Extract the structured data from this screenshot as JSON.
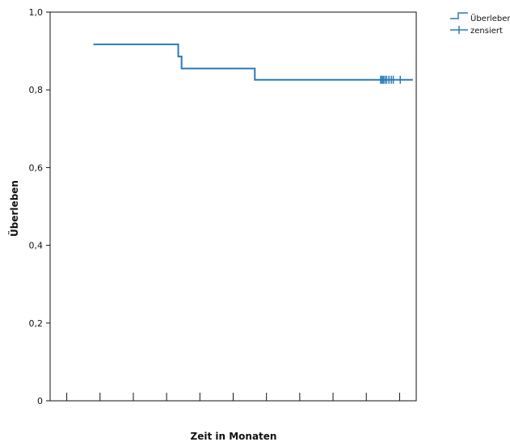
{
  "colors": {
    "series": "#2a7ab9",
    "axis": "#111111",
    "background": "#ffffff"
  },
  "chart_data": {
    "type": "line",
    "title": "",
    "xlabel": "Zeit in Monaten",
    "ylabel": "Überleben",
    "ylim": [
      0,
      1
    ],
    "xlim": [
      0,
      110
    ],
    "yticks": [
      0,
      0.2,
      0.4,
      0.6,
      0.8,
      1.0
    ],
    "ytick_labels": [
      "0",
      "0,2",
      "0,4",
      "0,6",
      "0,8",
      "1,0"
    ],
    "xticks": [
      5,
      15,
      25,
      35,
      45,
      55,
      65,
      75,
      85,
      95,
      105
    ],
    "grid": false,
    "legend": {
      "placement": "top-right-outside",
      "entries": [
        {
          "label": "Überleben",
          "symbol": "step-line"
        },
        {
          "label": "zensiert",
          "symbol": "plus"
        }
      ]
    },
    "series": [
      {
        "name": "Überleben",
        "step": true,
        "x": [
          13,
          38.5,
          38.5,
          39.5,
          39.5,
          61.5,
          61.5,
          109
        ],
        "y": [
          0.917,
          0.917,
          0.886,
          0.886,
          0.855,
          0.855,
          0.826,
          0.826
        ]
      },
      {
        "name": "zensiert",
        "type": "scatter",
        "marker": "plus",
        "x": [
          99.3,
          99.7,
          100.1,
          100.6,
          101.1,
          101.8,
          102.5,
          103.1,
          105.2
        ],
        "y": [
          0.826,
          0.826,
          0.826,
          0.826,
          0.826,
          0.826,
          0.826,
          0.826,
          0.826
        ]
      }
    ]
  }
}
